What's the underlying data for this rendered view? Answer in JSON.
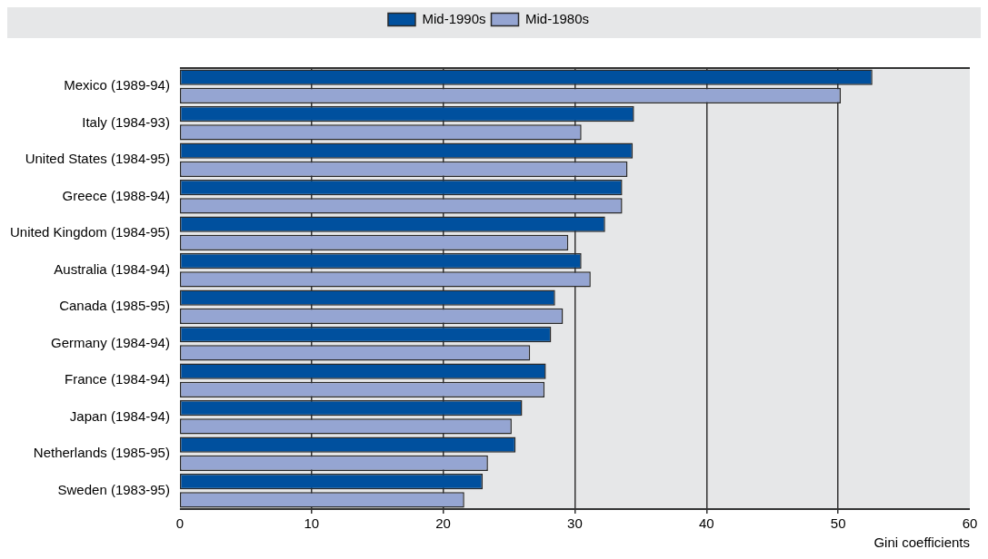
{
  "chart_data": {
    "type": "bar",
    "orientation": "horizontal",
    "xlabel": "Gini coefficients",
    "categories": [
      "Mexico (1989-94)",
      "Italy (1984-93)",
      "United States (1984-95)",
      "Greece (1988-94)",
      "United Kingdom (1984-95)",
      "Australia (1984-94)",
      "Canada (1985-95)",
      "Germany (1984-94)",
      "France (1984-94)",
      "Japan (1984-94)",
      "Netherlands (1985-95)",
      "Sweden (1983-95)"
    ],
    "series": [
      {
        "name": "Mid-1990s",
        "color": "#00509e",
        "values": [
          52.6,
          34.5,
          34.4,
          33.6,
          32.3,
          30.5,
          28.5,
          28.2,
          27.8,
          26.0,
          25.5,
          23.0
        ]
      },
      {
        "name": "Mid-1980s",
        "color": "#95a5d2",
        "values": [
          50.2,
          30.5,
          34.0,
          33.6,
          29.5,
          31.2,
          29.1,
          26.6,
          27.7,
          25.2,
          23.4,
          21.6
        ]
      }
    ],
    "xlim": [
      0,
      60
    ],
    "xticks": [
      0,
      10,
      20,
      30,
      40,
      50,
      60
    ],
    "grid": "x",
    "legend": "top"
  }
}
